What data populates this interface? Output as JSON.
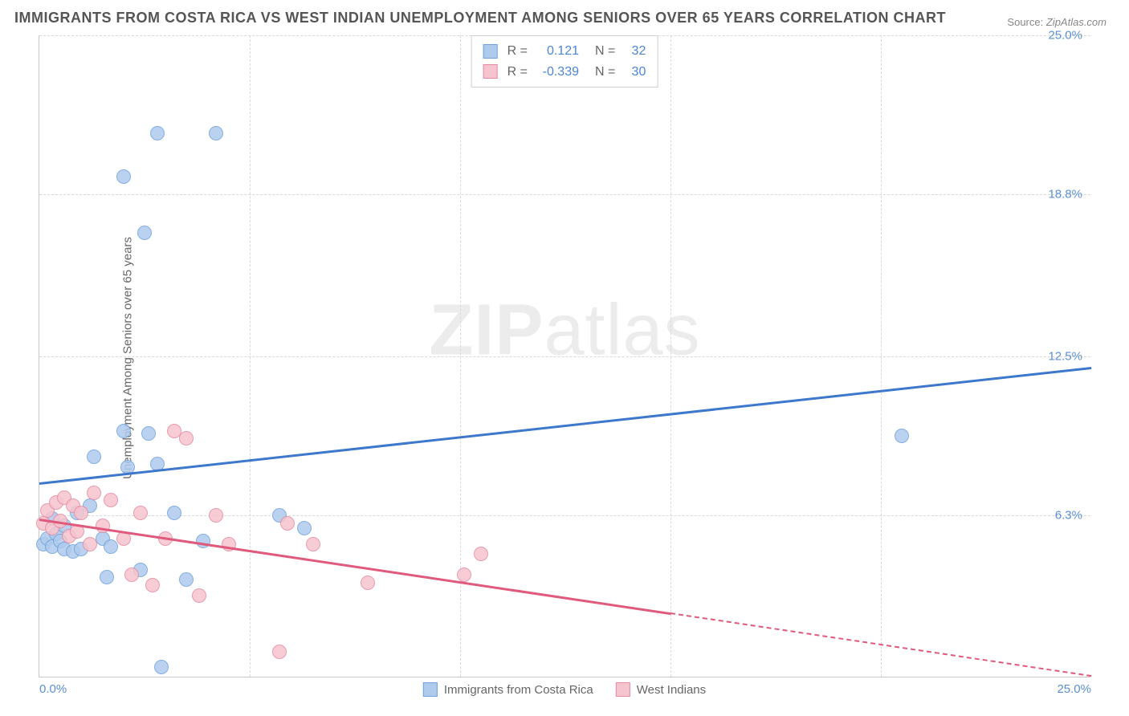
{
  "title": "IMMIGRANTS FROM COSTA RICA VS WEST INDIAN UNEMPLOYMENT AMONG SENIORS OVER 65 YEARS CORRELATION CHART",
  "source_label": "Source:",
  "source_value": "ZipAtlas.com",
  "ylabel": "Unemployment Among Seniors over 65 years",
  "watermark_bold": "ZIP",
  "watermark_rest": "atlas",
  "chart": {
    "type": "scatter",
    "xlim": [
      0,
      25
    ],
    "ylim": [
      0,
      25
    ],
    "x_ticks": [
      0.0,
      25.0
    ],
    "y_ticks": [
      6.3,
      12.5,
      18.8,
      25.0
    ],
    "x_tick_labels": [
      "0.0%",
      "25.0%"
    ],
    "y_tick_labels": [
      "6.3%",
      "12.5%",
      "18.8%",
      "25.0%"
    ],
    "v_grid_at": [
      5,
      10,
      15,
      20
    ],
    "grid_color": "#d9d9d9",
    "background_color": "#ffffff",
    "axis_color": "#c7c7c7",
    "tick_label_color": "#5a8fd6",
    "marker_radius": 9,
    "series": [
      {
        "name": "Immigrants from Costa Rica",
        "fill": "#aecbed",
        "stroke": "#6fa1dd",
        "line_color": "#3d78cc",
        "r": 0.121,
        "n": 32,
        "trend": {
          "x1": 0,
          "y1": 7.6,
          "x2": 25,
          "y2": 12.1,
          "solid_until_x": 25
        },
        "points": [
          [
            0.1,
            5.2
          ],
          [
            0.2,
            5.4
          ],
          [
            0.3,
            5.1
          ],
          [
            0.4,
            5.6
          ],
          [
            0.3,
            6.2
          ],
          [
            0.5,
            5.3
          ],
          [
            0.6,
            5.0
          ],
          [
            0.6,
            5.9
          ],
          [
            0.8,
            4.9
          ],
          [
            0.9,
            6.4
          ],
          [
            1.0,
            5.0
          ],
          [
            1.2,
            6.7
          ],
          [
            1.3,
            8.6
          ],
          [
            1.5,
            5.4
          ],
          [
            1.6,
            3.9
          ],
          [
            1.7,
            5.1
          ],
          [
            2.1,
            8.2
          ],
          [
            2.4,
            4.2
          ],
          [
            2.0,
            9.6
          ],
          [
            2.0,
            19.5
          ],
          [
            2.5,
            17.3
          ],
          [
            2.8,
            21.2
          ],
          [
            4.2,
            21.2
          ],
          [
            2.6,
            9.5
          ],
          [
            2.8,
            8.3
          ],
          [
            3.2,
            6.4
          ],
          [
            3.5,
            3.8
          ],
          [
            3.9,
            5.3
          ],
          [
            5.7,
            6.3
          ],
          [
            6.3,
            5.8
          ],
          [
            2.9,
            0.4
          ],
          [
            20.5,
            9.4
          ]
        ]
      },
      {
        "name": "West Indians",
        "fill": "#f6c4ce",
        "stroke": "#e68aa0",
        "line_color": "#e05a7d",
        "r": -0.339,
        "n": 30,
        "trend": {
          "x1": 0,
          "y1": 6.2,
          "x2": 25,
          "y2": 0.1,
          "solid_until_x": 15
        },
        "points": [
          [
            0.1,
            6.0
          ],
          [
            0.2,
            6.5
          ],
          [
            0.3,
            5.8
          ],
          [
            0.4,
            6.8
          ],
          [
            0.5,
            6.1
          ],
          [
            0.6,
            7.0
          ],
          [
            0.7,
            5.5
          ],
          [
            0.8,
            6.7
          ],
          [
            0.9,
            5.7
          ],
          [
            1.0,
            6.4
          ],
          [
            1.2,
            5.2
          ],
          [
            1.3,
            7.2
          ],
          [
            1.5,
            5.9
          ],
          [
            1.7,
            6.9
          ],
          [
            2.0,
            5.4
          ],
          [
            2.2,
            4.0
          ],
          [
            2.4,
            6.4
          ],
          [
            2.7,
            3.6
          ],
          [
            3.0,
            5.4
          ],
          [
            3.2,
            9.6
          ],
          [
            3.5,
            9.3
          ],
          [
            3.8,
            3.2
          ],
          [
            4.2,
            6.3
          ],
          [
            4.5,
            5.2
          ],
          [
            5.7,
            1.0
          ],
          [
            5.9,
            6.0
          ],
          [
            6.5,
            5.2
          ],
          [
            7.8,
            3.7
          ],
          [
            10.1,
            4.0
          ],
          [
            10.5,
            4.8
          ]
        ]
      }
    ]
  },
  "legend_top": {
    "r_label": "R =",
    "n_label": "N ="
  },
  "legend_bottom": {
    "items": [
      "Immigrants from Costa Rica",
      "West Indians"
    ]
  }
}
